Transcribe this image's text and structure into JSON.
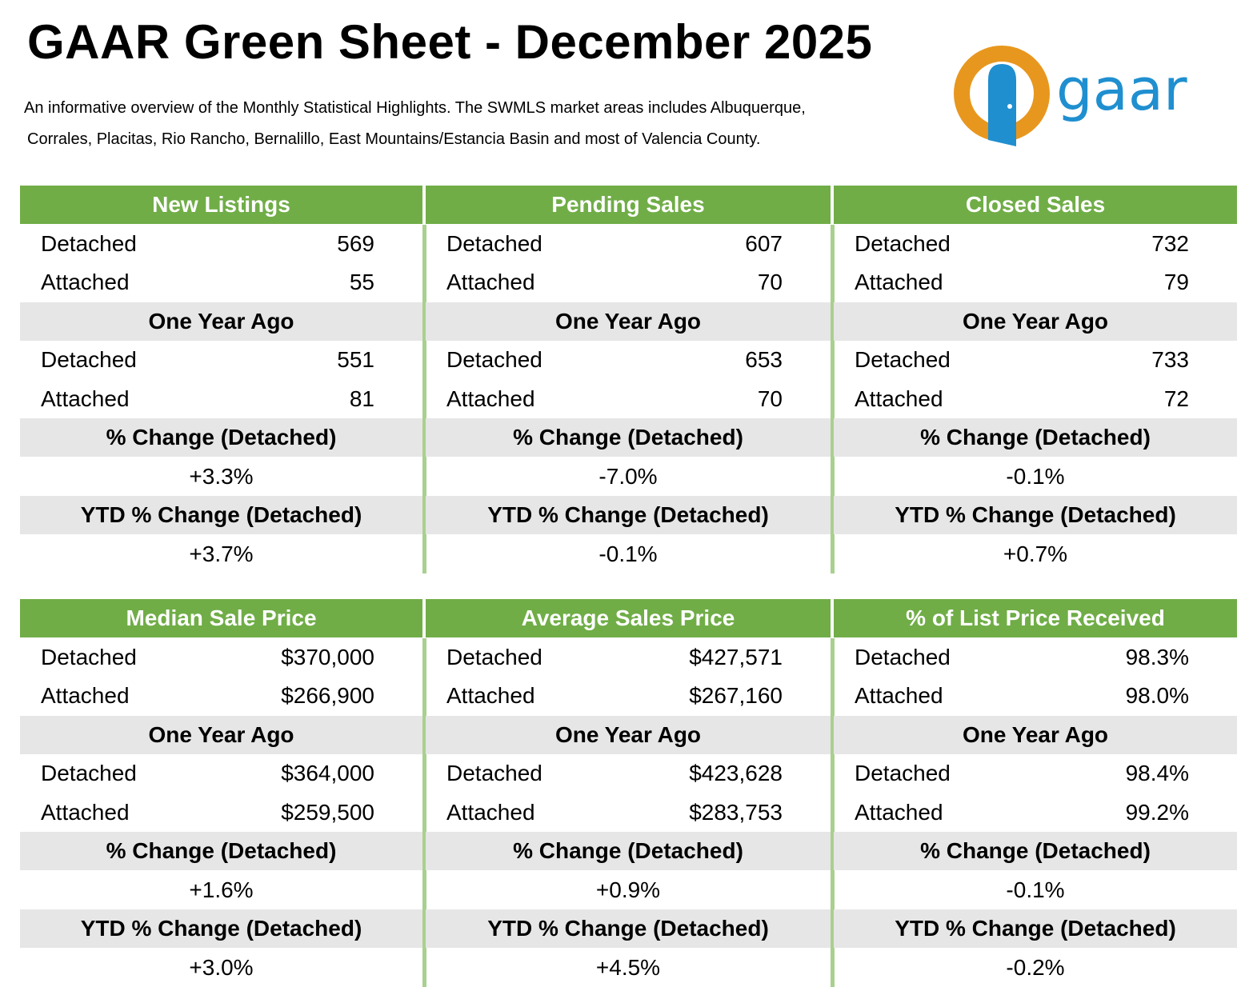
{
  "header": {
    "title": "GAAR Green Sheet - December 2025",
    "subtitle": [
      "An informative overview of the Monthly Statistical Highlights. The SWMLS market areas includes Albuquerque,",
      "Corrales, Placitas, Rio Rancho, Bernalillo, East Mountains/Estancia Basin and most of Valencia County."
    ],
    "logo": "gaar"
  },
  "panels": [
    {
      "title": "New Listings",
      "current": [
        {
          "label": "Detached",
          "value": "569"
        },
        {
          "label": "Attached",
          "value": "55"
        }
      ],
      "prior_heading": "One Year Ago",
      "prior": [
        {
          "label": "Detached",
          "value": "551"
        },
        {
          "label": "Attached",
          "value": "81"
        }
      ],
      "change_heading": "% Change (Detached)",
      "change": "+3.3%",
      "ytd_heading": "YTD % Change (Detached)",
      "ytd": "+3.7%"
    },
    {
      "title": "Pending Sales",
      "current": [
        {
          "label": "Detached",
          "value": "607"
        },
        {
          "label": "Attached",
          "value": "70"
        }
      ],
      "prior_heading": "One Year Ago",
      "prior": [
        {
          "label": "Detached",
          "value": "653"
        },
        {
          "label": "Attached",
          "value": "70"
        }
      ],
      "change_heading": "% Change (Detached)",
      "change": "-7.0%",
      "ytd_heading": "YTD % Change (Detached)",
      "ytd": "-0.1%"
    },
    {
      "title": "Closed Sales",
      "current": [
        {
          "label": "Detached",
          "value": "732"
        },
        {
          "label": "Attached",
          "value": "79"
        }
      ],
      "prior_heading": "One Year Ago",
      "prior": [
        {
          "label": "Detached",
          "value": "733"
        },
        {
          "label": "Attached",
          "value": "72"
        }
      ],
      "change_heading": "% Change (Detached)",
      "change": "-0.1%",
      "ytd_heading": "YTD % Change (Detached)",
      "ytd": "+0.7%"
    },
    {
      "title": "Median Sale Price",
      "current": [
        {
          "label": "Detached",
          "value": "$370,000"
        },
        {
          "label": "Attached",
          "value": "$266,900"
        }
      ],
      "prior_heading": "One Year Ago",
      "prior": [
        {
          "label": "Detached",
          "value": "$364,000"
        },
        {
          "label": "Attached",
          "value": "$259,500"
        }
      ],
      "change_heading": "% Change (Detached)",
      "change": "+1.6%",
      "ytd_heading": "YTD % Change (Detached)",
      "ytd": "+3.0%"
    },
    {
      "title": "Average Sales Price",
      "current": [
        {
          "label": "Detached",
          "value": "$427,571"
        },
        {
          "label": "Attached",
          "value": "$267,160"
        }
      ],
      "prior_heading": "One Year Ago",
      "prior": [
        {
          "label": "Detached",
          "value": "$423,628"
        },
        {
          "label": "Attached",
          "value": "$283,753"
        }
      ],
      "change_heading": "% Change (Detached)",
      "change": "+0.9%",
      "ytd_heading": "YTD % Change (Detached)",
      "ytd": "+4.5%"
    },
    {
      "title": "% of List Price Received",
      "current": [
        {
          "label": "Detached",
          "value": "98.3%"
        },
        {
          "label": "Attached",
          "value": "98.0%"
        }
      ],
      "prior_heading": "One Year Ago",
      "prior": [
        {
          "label": "Detached",
          "value": "98.4%"
        },
        {
          "label": "Attached",
          "value": "99.2%"
        }
      ],
      "change_heading": "% Change (Detached)",
      "change": "-0.1%",
      "ytd_heading": "YTD % Change (Detached)",
      "ytd": "-0.2%"
    }
  ]
}
